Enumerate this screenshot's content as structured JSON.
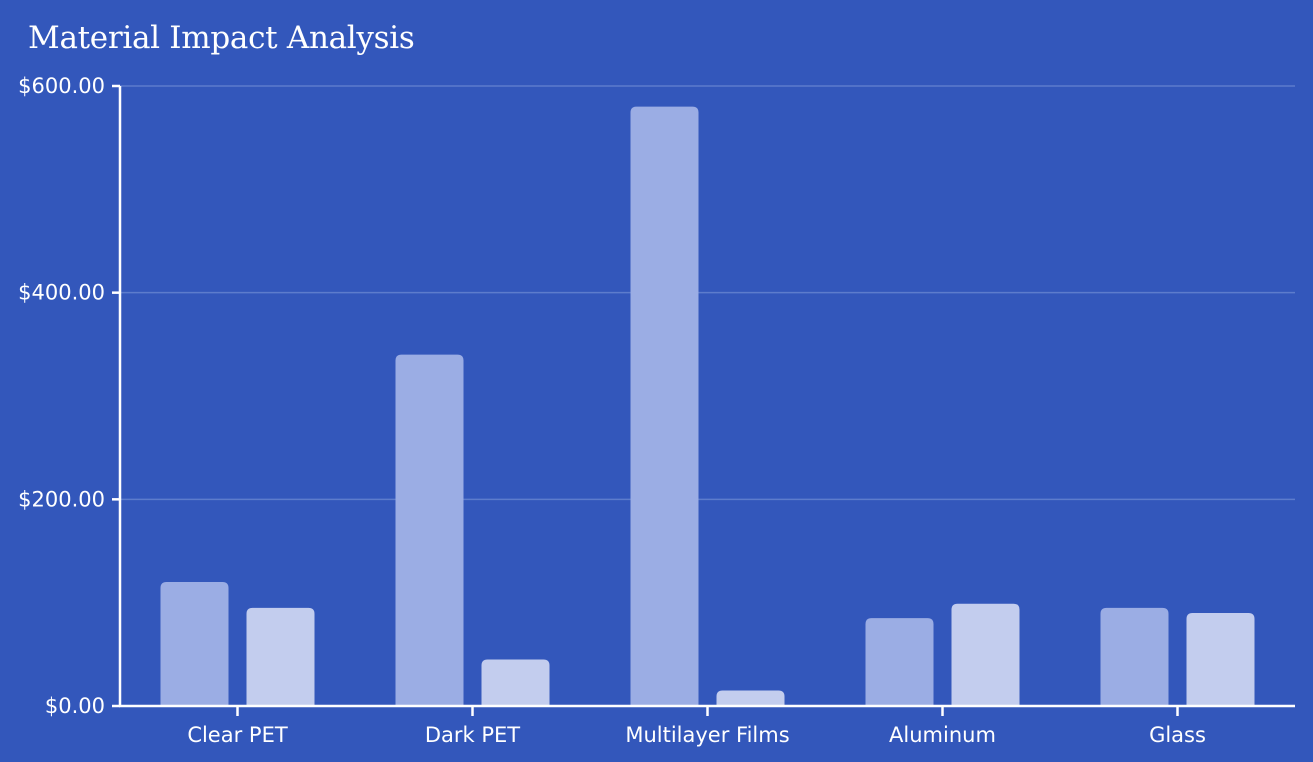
{
  "chart_data": {
    "type": "bar",
    "title": "Material Impact Analysis",
    "xlabel": "",
    "ylabel": "",
    "categories": [
      "Clear PET",
      "Dark PET",
      "Multilayer Films",
      "Aluminum",
      "Glass"
    ],
    "series": [
      {
        "values": [
          120,
          340,
          580,
          85,
          95
        ]
      },
      {
        "values": [
          95,
          45,
          15,
          99,
          90
        ]
      }
    ],
    "ylim": [
      0,
      600
    ],
    "yticks": [
      0,
      200,
      400,
      600
    ],
    "ytick_labels": [
      "$0.00",
      "$200.00",
      "$400.00",
      "$600.00"
    ],
    "grid": true,
    "legend": "none",
    "colors": {
      "background": "#3357bb",
      "series": [
        "#9badE4",
        "#c3cdee"
      ],
      "grid": "#5d7ccc",
      "axis": "#ffffff",
      "text": "#ffffff"
    }
  }
}
